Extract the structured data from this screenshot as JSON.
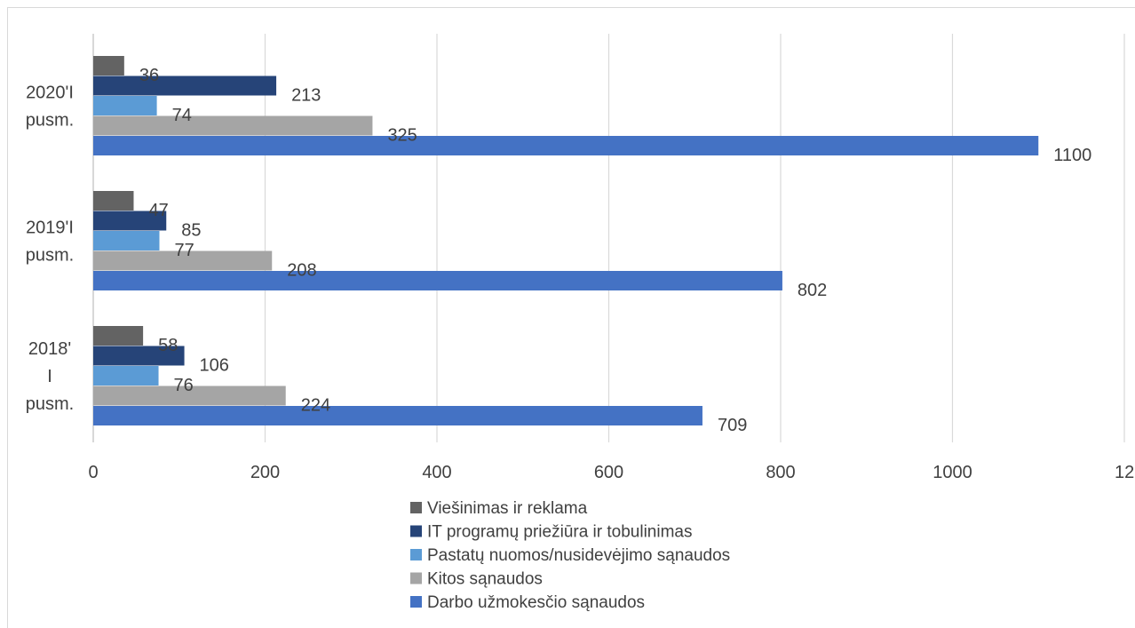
{
  "chart_data": {
    "type": "bar",
    "orientation": "horizontal",
    "categories": [
      [
        "2020'I",
        "pusm."
      ],
      [
        "2019'I",
        "pusm."
      ],
      [
        "2018'",
        "I",
        "pusm."
      ]
    ],
    "series": [
      {
        "name": "Viešinimas ir reklama",
        "color": "#636363",
        "values": [
          36,
          47,
          58
        ]
      },
      {
        "name": "IT programų priežiūra ir tobulinimas",
        "color": "#264478",
        "values": [
          213,
          85,
          106
        ]
      },
      {
        "name": "Pastatų nuomos/nusidevėjimo sąnaudos",
        "color": "#5B9BD5",
        "values": [
          74,
          77,
          76
        ]
      },
      {
        "name": "Kitos sąnaudos",
        "color": "#A5A5A5",
        "values": [
          325,
          208,
          224
        ]
      },
      {
        "name": "Darbo užmokesčio sąnaudos",
        "color": "#4472C4",
        "values": [
          1100,
          802,
          709
        ]
      }
    ],
    "x_ticks": [
      "0",
      "200",
      "400",
      "600",
      "800",
      "1000",
      "12"
    ],
    "xlim": [
      0,
      1200
    ],
    "grid": true,
    "legend_position": "bottom"
  }
}
